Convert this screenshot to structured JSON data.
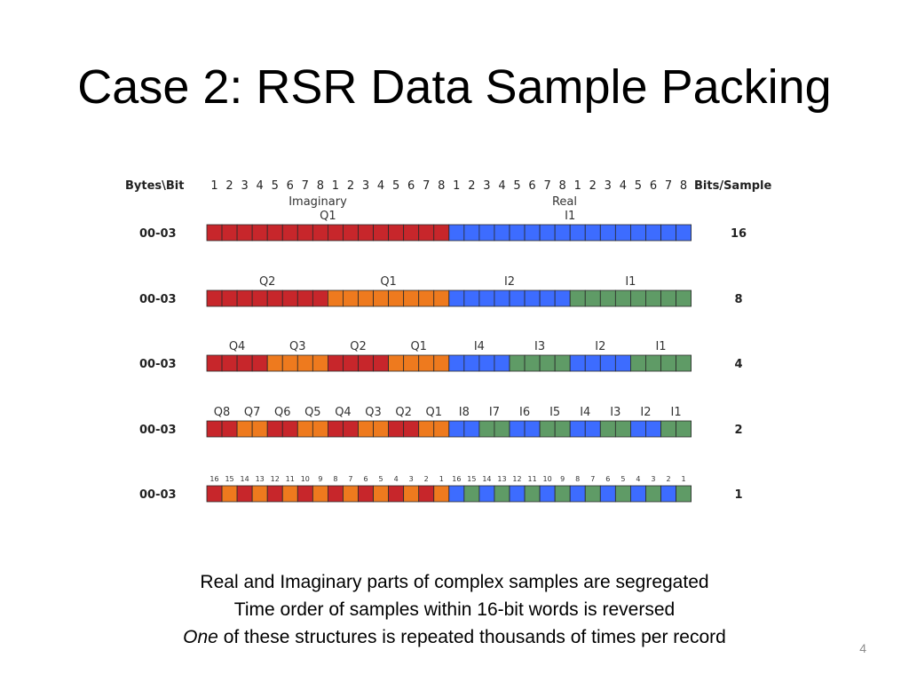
{
  "title": "Case 2: RSR Data Sample Packing",
  "diagram": {
    "header_left": "Bytes\\Bit",
    "header_right": "Bits/Sample",
    "bit_numbers": [
      "1",
      "2",
      "3",
      "4",
      "5",
      "6",
      "7",
      "8",
      "1",
      "2",
      "3",
      "4",
      "5",
      "6",
      "7",
      "8",
      "1",
      "2",
      "3",
      "4",
      "5",
      "6",
      "7",
      "8",
      "1",
      "2",
      "3",
      "4",
      "5",
      "6",
      "7",
      "8"
    ],
    "imaginary_label": "Imaginary",
    "real_label": "Real",
    "colors": {
      "red": "#c7262b",
      "orange": "#ee7a1e",
      "blue": "#3d6cff",
      "green": "#5f9b66"
    },
    "rows": [
      {
        "byte_label": "00-03",
        "bits_per_sample": "16",
        "small_labels": false,
        "labels": [
          "Q1",
          "I1"
        ],
        "groups": [
          "red",
          "blue"
        ]
      },
      {
        "byte_label": "00-03",
        "bits_per_sample": "8",
        "small_labels": false,
        "labels": [
          "Q2",
          "Q1",
          "I2",
          "I1"
        ],
        "groups": [
          "red",
          "orange",
          "blue",
          "green"
        ]
      },
      {
        "byte_label": "00-03",
        "bits_per_sample": "4",
        "small_labels": false,
        "labels": [
          "Q4",
          "Q3",
          "Q2",
          "Q1",
          "I4",
          "I3",
          "I2",
          "I1"
        ],
        "groups": [
          "red",
          "orange",
          "red",
          "orange",
          "blue",
          "green",
          "blue",
          "green"
        ]
      },
      {
        "byte_label": "00-03",
        "bits_per_sample": "2",
        "small_labels": false,
        "labels": [
          "Q8",
          "Q7",
          "Q6",
          "Q5",
          "Q4",
          "Q3",
          "Q2",
          "Q1",
          "I8",
          "I7",
          "I6",
          "I5",
          "I4",
          "I3",
          "I2",
          "I1"
        ],
        "groups": [
          "red",
          "orange",
          "red",
          "orange",
          "red",
          "orange",
          "red",
          "orange",
          "blue",
          "green",
          "blue",
          "green",
          "blue",
          "green",
          "blue",
          "green"
        ]
      },
      {
        "byte_label": "00-03",
        "bits_per_sample": "1",
        "small_labels": true,
        "labels": [
          "16",
          "15",
          "14",
          "13",
          "12",
          "11",
          "10",
          "9",
          "8",
          "7",
          "6",
          "5",
          "4",
          "3",
          "2",
          "1",
          "16",
          "15",
          "14",
          "13",
          "12",
          "11",
          "10",
          "9",
          "8",
          "7",
          "6",
          "5",
          "4",
          "3",
          "2",
          "1"
        ],
        "groups": [
          "red",
          "orange",
          "red",
          "orange",
          "red",
          "orange",
          "red",
          "orange",
          "red",
          "orange",
          "red",
          "orange",
          "red",
          "orange",
          "red",
          "orange",
          "blue",
          "green",
          "blue",
          "green",
          "blue",
          "green",
          "blue",
          "green",
          "blue",
          "green",
          "blue",
          "green",
          "blue",
          "green",
          "blue",
          "green"
        ]
      }
    ]
  },
  "caption": {
    "line1": "Real and Imaginary parts of complex samples are segregated",
    "line2": "Time order of samples within 16-bit words is reversed",
    "line3_em": "One",
    "line3_rest": " of these structures is repeated thousands of times per record"
  },
  "slide_number": "4"
}
